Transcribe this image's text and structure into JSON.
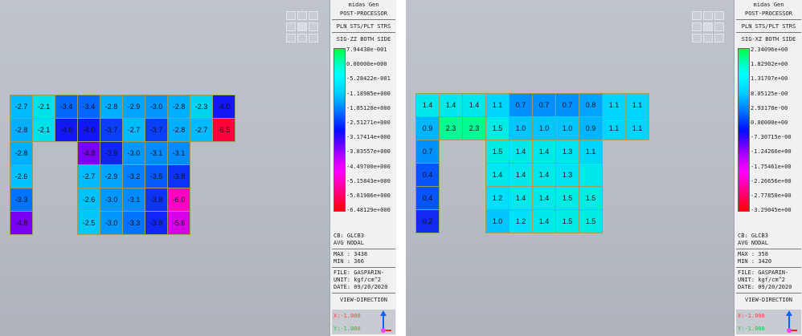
{
  "left": {
    "title1": "midas Gen",
    "title2": "POST-PROCESSOR",
    "title3": "PLN STS/PLT STRS",
    "component": "SIG-ZZ BOTH SIDE",
    "legend": [
      "7.94438e-001",
      "0.00000e+000",
      "-5.28422e-001",
      "-1.18985e+000",
      "-1.85128e+000",
      "-2.51271e+000",
      "-3.17414e+000",
      "-3.83557e+000",
      "-4.49700e+000",
      "-5.15843e+000",
      "-5.81986e+000",
      "-6.48129e+000"
    ],
    "cb": "CB: GLCB3",
    "avg": "AVG NODAL",
    "max": "MAX : 3438",
    "min": "MIN : 366",
    "file": "FILE: GASPARIN-",
    "unit": "UNIT: kgf/cm^2",
    "date": "DATE: 09/20/2020",
    "view_direction": "VIEW-DIRECTION",
    "vx": "X:-1.000",
    "vz": "Y:-1.000",
    "rows": [
      [
        "-2.7",
        "-2.1",
        "-3.4",
        "-3.4",
        "-2.8",
        "-2.9",
        "-3.0",
        "-2.8",
        "-2.3",
        "-4.0"
      ],
      [
        "-2.8",
        "-2.1",
        "-4.0",
        "-4.0",
        "-3.7",
        "-2.7",
        "-3.7",
        "-2.8",
        "-2.7",
        "-6.5"
      ],
      [
        "-2.8",
        "",
        "",
        "-4.8",
        "-3.9",
        "-3.0",
        "-3.1",
        "-3.1",
        "",
        ""
      ],
      [
        "-2.6",
        "",
        "",
        "-2.7",
        "-2.9",
        "-3.2",
        "-3.5",
        "-3.8",
        "",
        ""
      ],
      [
        "-3.3",
        "",
        "",
        "-2.6",
        "-3.0",
        "-3.1",
        "-3.8",
        "-6.0",
        "",
        ""
      ],
      [
        "-4.8",
        "",
        "",
        "-2.5",
        "-3.0",
        "-3.3",
        "-3.9",
        "-5.6",
        "",
        ""
      ]
    ]
  },
  "right": {
    "title1": "midas Gen",
    "title2": "POST-PROCESSOR",
    "title3": "PLN STS/PLT STRS",
    "component": "SIG-XZ BOTH SIDE",
    "legend": [
      "2.34096e+00",
      "1.82902e+00",
      "1.31707e+00",
      "8.05125e-00",
      "2.93178e-00",
      "0.00000e+00",
      "-7.30715e-00",
      "-1.24266e+00",
      "-1.75461e+00",
      "-2.26656e+00",
      "-2.77850e+00",
      "-3.29045e+00"
    ],
    "cb": "CB: GLCB3",
    "avg": "AVG NODAL",
    "max": "MAX : 358",
    "min": "MIN : 3420",
    "file": "FILE: GASPARIN-",
    "unit": "UNIT: kgf/cm^2",
    "date": "DATE: 09/20/2020",
    "view_direction": "VIEW-DIRECTION",
    "vx": "X:-1.000",
    "vz": "Y:-1.000",
    "rows": [
      [
        "1.4",
        "1.4",
        "1.4",
        "1.1",
        "0.7",
        "0.7",
        "0.7",
        "0.8",
        "1.1",
        "1.1"
      ],
      [
        "0.9",
        "2.3",
        "2.3",
        "1.5",
        "1.0",
        "1.0",
        "1.0",
        "0.9",
        "1.1",
        "1.1"
      ],
      [
        "0.7",
        "",
        "",
        "1.5",
        "1.4",
        "1.4",
        "1.3",
        "1.1",
        "",
        ""
      ],
      [
        "0.4",
        "",
        "",
        "1.4",
        "1.4",
        "1.4",
        "1.3",
        "",
        "",
        " "
      ],
      [
        "0.4",
        "",
        "",
        "1.2",
        "1.4",
        "1.4",
        "1.5",
        "1.5",
        "",
        ""
      ],
      [
        "0.2",
        "",
        "",
        "1.0",
        "1.2",
        "1.4",
        "1.5",
        "1.5",
        "",
        ""
      ]
    ]
  }
}
